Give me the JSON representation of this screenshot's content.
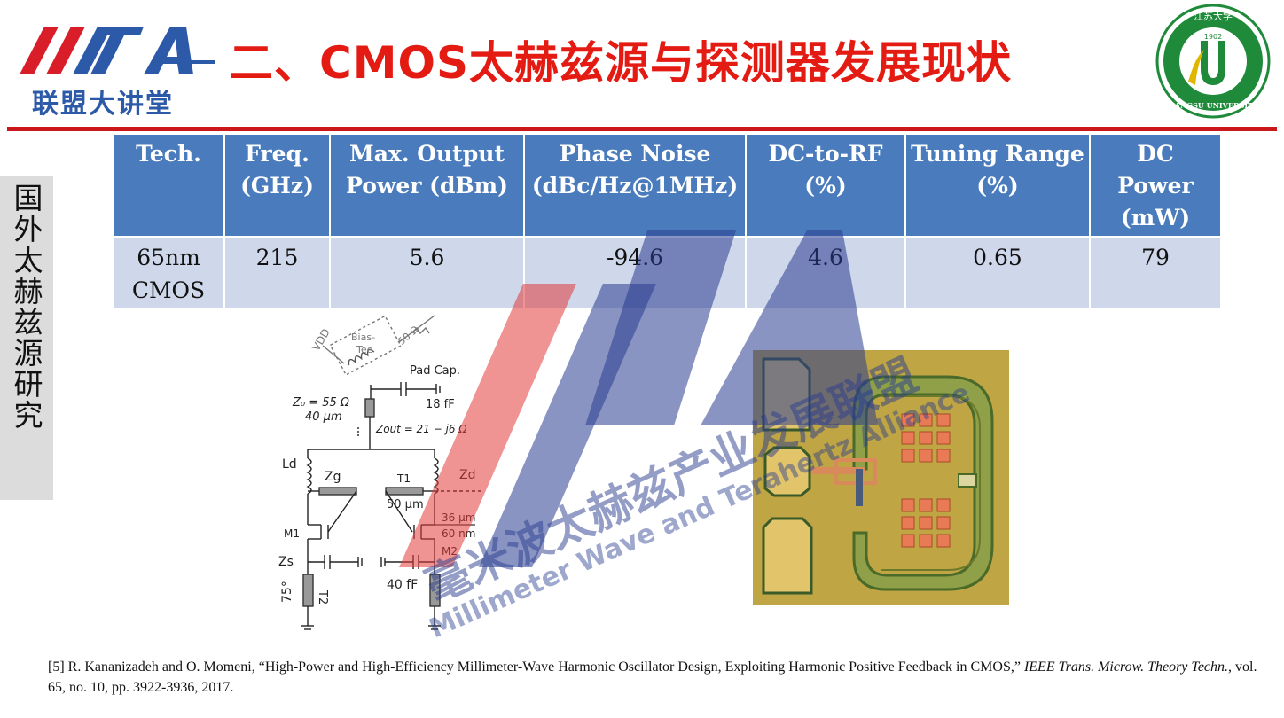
{
  "header": {
    "logo_text": "联盟大讲堂",
    "title": "二、CMOS太赫兹源与探测器发展现状",
    "university": {
      "name_cn": "江苏大学",
      "name_en": "JIANGSU UNIVERSITY",
      "year": "1902"
    }
  },
  "side_tab": {
    "label": "国外太赫兹源研究"
  },
  "table": {
    "headers": [
      [
        "Tech."
      ],
      [
        "Freq.",
        "(GHz)"
      ],
      [
        "Max. Output",
        "Power (dBm)"
      ],
      [
        "Phase Noise",
        "(dBc/Hz@1MHz)"
      ],
      [
        "DC-to-RF",
        "(%)"
      ],
      [
        "Tuning Range",
        "(%)"
      ],
      [
        "DC",
        "Power",
        "(mW)"
      ]
    ],
    "rows": [
      [
        [
          "65nm",
          "CMOS"
        ],
        [
          "215"
        ],
        [
          "5.6"
        ],
        [
          "-94.6"
        ],
        [
          "4.6"
        ],
        [
          "0.65"
        ],
        [
          "79"
        ]
      ]
    ]
  },
  "circuit": {
    "vdd": "VDD",
    "bias_tee_1": "Bias-",
    "bias_tee_2": "Tee",
    "ohm50": "50 Ω",
    "pad_cap": "Pad Cap.",
    "cap_18": "18 fF",
    "z0": "Z₀ = 55 Ω",
    "len40": "40 μm",
    "zout": "Zout = 21 − j6 Ω",
    "ld": "Ld",
    "zg": "Zg",
    "t1": "T1",
    "zd": "Zd",
    "len50": "50 μm",
    "w36": "36 μm",
    "l60": "60 nm",
    "m1": "M1",
    "m2": "M2",
    "zs": "Zs",
    "cap40": "40 fF",
    "t2": "T2",
    "deg75": "75°"
  },
  "watermark": {
    "cn": "毫米波太赫兹产业发展联盟",
    "en": "Millimeter Wave and Terahertz Alliance"
  },
  "reference": {
    "text": "[5] R. Kananizadeh and O. Momeni, “High-Power and High-Efficiency Millimeter-Wave Harmonic Oscillator Design, Exploiting Harmonic Positive Feedback in CMOS,” ",
    "journal": "IEEE Trans. Microw. Theory Techn.",
    "details": ", vol.  65, no.  10, pp.  3922-3936, 2017."
  },
  "colors": {
    "title_red": "#e41b13",
    "table_header": "#4a7cbd",
    "table_row": "#cfd7ea",
    "logo_blue": "#2d5aa8",
    "university_green": "#1e8a3a"
  }
}
